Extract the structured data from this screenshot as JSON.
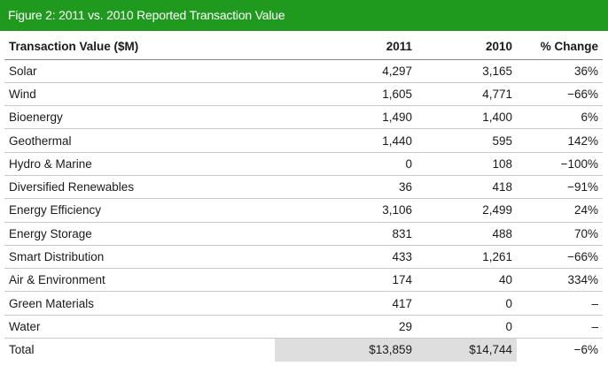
{
  "title": "Figure 2: 2011 vs. 2010 Reported Transaction Value",
  "table": {
    "headers": [
      "Transaction Value ($M)",
      "2011",
      "2010",
      "% Change"
    ],
    "rows": [
      [
        "Solar",
        "4,297",
        "3,165",
        "36%"
      ],
      [
        "Wind",
        "1,605",
        "4,771",
        "−66%"
      ],
      [
        "Bioenergy",
        "1,490",
        "1,400",
        "6%"
      ],
      [
        "Geothermal",
        "1,440",
        "595",
        "142%"
      ],
      [
        "Hydro & Marine",
        "0",
        "108",
        "−100%"
      ],
      [
        "Diversified Renewables",
        "36",
        "418",
        "−91%"
      ],
      [
        "Energy Efficiency",
        "3,106",
        "2,499",
        "24%"
      ],
      [
        "Energy Storage",
        "831",
        "488",
        "70%"
      ],
      [
        "Smart Distribution",
        "433",
        "1,261",
        "−66%"
      ],
      [
        "Air & Environment",
        "174",
        "40",
        "334%"
      ],
      [
        "Green Materials",
        "417",
        "0",
        "–"
      ],
      [
        "Water",
        "29",
        "0",
        "–"
      ]
    ],
    "total": [
      "Total",
      "$13,859",
      "$14,744",
      "−6%"
    ]
  },
  "colors": {
    "title_bar": "#1f9a1f",
    "total_shade": "#dedede"
  }
}
